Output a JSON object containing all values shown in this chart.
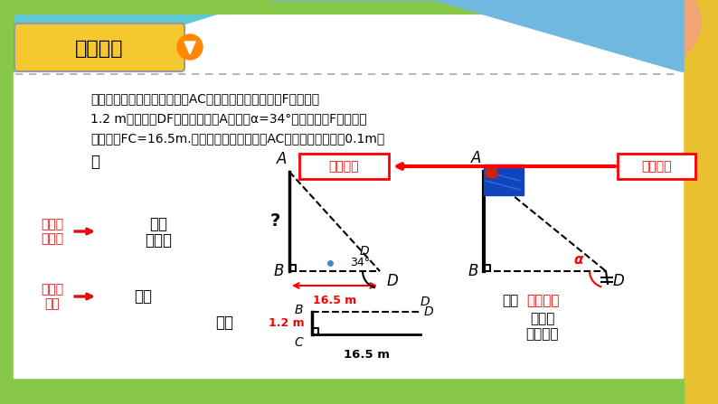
{
  "title_text": "新课导入",
  "title_bg": "#f5c830",
  "problem_line1": "如图，某同学在测量学校旗杆AC的高度时，先在测量点F处用高为",
  "problem_line2": "1.2 m的测角仪DF测得旗杆顶部A的仰角α=34°，再量出点F到旗杆的",
  "problem_line3": "水平距离FC=16.5m.请你帮助他计算出旗杆AC的高（结果精确到0.1m）",
  "dot_text": "．",
  "model_label": "数学模型",
  "real_label": "实际问题",
  "left_red1a": "解直角",
  "left_red1b": "三角形",
  "left_black1a": "直角",
  "left_black1b": "三角形",
  "left_red2a": "矩形的",
  "left_red2b": "性质",
  "left_black2": "矩形",
  "cloud_black1": "底部",
  "cloud_red": "可以到达",
  "cloud_black2": "的建筑",
  "cloud_black3": "物的测量",
  "dim_upper": "16.5 m",
  "dim_lower": "16.5 m",
  "dim_height": "1.2 m",
  "angle_34": "34°",
  "alpha_sym": "α",
  "question": "?",
  "bg_green": "#a8d878",
  "bg_yellow": "#e8c840",
  "bg_white": "#ffffff",
  "bg_blue_top": "#5ab8d8",
  "bg_pink": "#f8a0c8"
}
